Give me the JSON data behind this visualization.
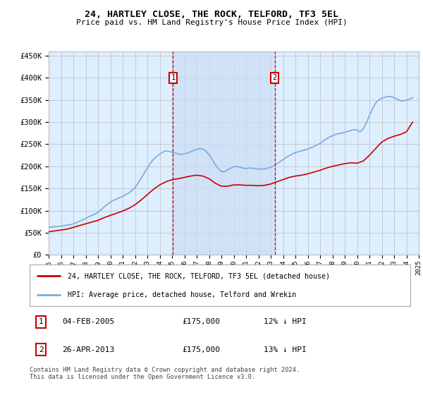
{
  "title": "24, HARTLEY CLOSE, THE ROCK, TELFORD, TF3 5EL",
  "subtitle": "Price paid vs. HM Land Registry's House Price Index (HPI)",
  "ylabel_ticks": [
    "£0",
    "£50K",
    "£100K",
    "£150K",
    "£200K",
    "£250K",
    "£300K",
    "£350K",
    "£400K",
    "£450K"
  ],
  "ylabel_values": [
    0,
    50000,
    100000,
    150000,
    200000,
    250000,
    300000,
    350000,
    400000,
    450000
  ],
  "ylim": [
    0,
    460000
  ],
  "x_start_year": 1995,
  "x_end_year": 2025,
  "legend_line1": "24, HARTLEY CLOSE, THE ROCK, TELFORD, TF3 5EL (detached house)",
  "legend_line2": "HPI: Average price, detached house, Telford and Wrekin",
  "sale1_label": "1",
  "sale1_date": "04-FEB-2005",
  "sale1_price": "£175,000",
  "sale1_pct": "12% ↓ HPI",
  "sale1_year": 2005.08,
  "sale1_value": 175000,
  "sale2_label": "2",
  "sale2_date": "26-APR-2013",
  "sale2_price": "£175,000",
  "sale2_pct": "13% ↓ HPI",
  "sale2_year": 2013.32,
  "sale2_value": 175000,
  "footer": "Contains HM Land Registry data © Crown copyright and database right 2024.\nThis data is licensed under the Open Government Licence v3.0.",
  "line_color_red": "#cc0000",
  "line_color_blue": "#7aabdc",
  "bg_color": "#ddeeff",
  "grid_color": "#bbbbbb",
  "sale_box_color": "#cc0000",
  "hpi_data_x": [
    1995.0,
    1995.25,
    1995.5,
    1995.75,
    1996.0,
    1996.25,
    1996.5,
    1996.75,
    1997.0,
    1997.25,
    1997.5,
    1997.75,
    1998.0,
    1998.25,
    1998.5,
    1998.75,
    1999.0,
    1999.25,
    1999.5,
    1999.75,
    2000.0,
    2000.25,
    2000.5,
    2000.75,
    2001.0,
    2001.25,
    2001.5,
    2001.75,
    2002.0,
    2002.25,
    2002.5,
    2002.75,
    2003.0,
    2003.25,
    2003.5,
    2003.75,
    2004.0,
    2004.25,
    2004.5,
    2004.75,
    2005.0,
    2005.25,
    2005.5,
    2005.75,
    2006.0,
    2006.25,
    2006.5,
    2006.75,
    2007.0,
    2007.25,
    2007.5,
    2007.75,
    2008.0,
    2008.25,
    2008.5,
    2008.75,
    2009.0,
    2009.25,
    2009.5,
    2009.75,
    2010.0,
    2010.25,
    2010.5,
    2010.75,
    2011.0,
    2011.25,
    2011.5,
    2011.75,
    2012.0,
    2012.25,
    2012.5,
    2012.75,
    2013.0,
    2013.25,
    2013.5,
    2013.75,
    2014.0,
    2014.25,
    2014.5,
    2014.75,
    2015.0,
    2015.25,
    2015.5,
    2015.75,
    2016.0,
    2016.25,
    2016.5,
    2016.75,
    2017.0,
    2017.25,
    2017.5,
    2017.75,
    2018.0,
    2018.25,
    2018.5,
    2018.75,
    2019.0,
    2019.25,
    2019.5,
    2019.75,
    2020.0,
    2020.25,
    2020.5,
    2020.75,
    2021.0,
    2021.25,
    2021.5,
    2021.75,
    2022.0,
    2022.25,
    2022.5,
    2022.75,
    2023.0,
    2023.25,
    2023.5,
    2023.75,
    2024.0,
    2024.25,
    2024.5
  ],
  "hpi_data_y": [
    62000,
    63000,
    63500,
    64000,
    65000,
    66000,
    67000,
    68000,
    70000,
    73000,
    76000,
    79000,
    82000,
    86000,
    89000,
    92000,
    96000,
    102000,
    108000,
    114000,
    119000,
    123000,
    126000,
    129000,
    132000,
    136000,
    140000,
    145000,
    152000,
    162000,
    173000,
    185000,
    196000,
    207000,
    216000,
    222000,
    228000,
    232000,
    235000,
    234000,
    232000,
    230000,
    228000,
    227000,
    228000,
    230000,
    233000,
    236000,
    238000,
    240000,
    239000,
    234000,
    227000,
    216000,
    204000,
    195000,
    188000,
    188000,
    192000,
    196000,
    199000,
    200000,
    198000,
    196000,
    195000,
    196000,
    196000,
    195000,
    194000,
    194000,
    194000,
    196000,
    198000,
    201000,
    206000,
    210000,
    215000,
    220000,
    224000,
    228000,
    231000,
    233000,
    235000,
    237000,
    239000,
    242000,
    245000,
    248000,
    252000,
    257000,
    262000,
    266000,
    269000,
    272000,
    274000,
    275000,
    277000,
    279000,
    281000,
    283000,
    282000,
    278000,
    285000,
    298000,
    315000,
    330000,
    343000,
    350000,
    354000,
    356000,
    358000,
    358000,
    355000,
    352000,
    348000,
    348000,
    350000,
    352000,
    355000
  ],
  "price_data_x": [
    1995.0,
    1995.5,
    1996.0,
    1996.5,
    1997.0,
    1997.5,
    1998.0,
    1998.5,
    1999.0,
    1999.5,
    2000.0,
    2000.5,
    2001.0,
    2001.5,
    2002.0,
    2002.5,
    2003.0,
    2003.5,
    2004.0,
    2004.5,
    2005.0,
    2005.5,
    2006.0,
    2006.5,
    2007.0,
    2007.5,
    2008.0,
    2008.5,
    2009.0,
    2009.5,
    2010.0,
    2010.5,
    2011.0,
    2011.5,
    2012.0,
    2012.5,
    2013.0,
    2013.5,
    2014.0,
    2014.5,
    2015.0,
    2015.5,
    2016.0,
    2016.5,
    2017.0,
    2017.5,
    2018.0,
    2018.5,
    2019.0,
    2019.5,
    2020.0,
    2020.5,
    2021.0,
    2021.5,
    2022.0,
    2022.5,
    2023.0,
    2023.5,
    2024.0,
    2024.5
  ],
  "price_data_y": [
    52000,
    54000,
    56000,
    58000,
    62000,
    66000,
    70000,
    74000,
    78000,
    84000,
    89000,
    94000,
    99000,
    105000,
    113000,
    124000,
    136000,
    148000,
    158000,
    165000,
    170000,
    172000,
    175000,
    178000,
    180000,
    178000,
    172000,
    162000,
    155000,
    155000,
    158000,
    158000,
    157000,
    157000,
    156000,
    157000,
    160000,
    165000,
    170000,
    175000,
    178000,
    180000,
    183000,
    187000,
    191000,
    196000,
    200000,
    203000,
    206000,
    208000,
    207000,
    212000,
    225000,
    240000,
    255000,
    263000,
    268000,
    272000,
    278000,
    300000
  ]
}
